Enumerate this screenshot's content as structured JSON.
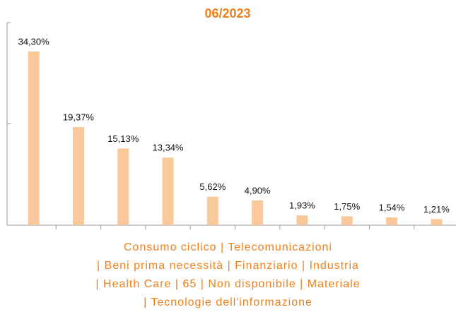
{
  "chart_data": {
    "type": "bar",
    "title": "06/2023",
    "categories": [
      "Consumo ciclico",
      "Telecomunicazioni",
      "Beni prima necessità",
      "Finanziario",
      "Industria",
      "Health Care",
      "65",
      "Non disponibile",
      "Materiale",
      "Tecnologie dell'informazione"
    ],
    "category_separator": "|",
    "values": [
      34.3,
      19.37,
      15.13,
      13.34,
      5.62,
      4.9,
      1.93,
      1.75,
      1.54,
      1.21
    ],
    "value_labels": [
      "34,30%",
      "19,37%",
      "15,13%",
      "13,34%",
      "5,62%",
      "4,90%",
      "1,93%",
      "1,75%",
      "1,54%",
      "1,21%"
    ],
    "color": "#f9c89b",
    "ylim": [
      0,
      40
    ],
    "yticks": [
      0,
      20,
      40
    ],
    "grid": false
  }
}
